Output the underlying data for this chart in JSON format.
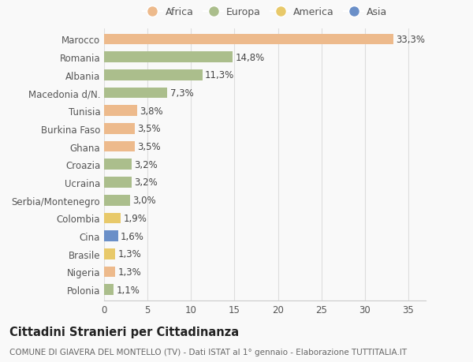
{
  "categories": [
    "Marocco",
    "Romania",
    "Albania",
    "Macedonia d/N.",
    "Tunisia",
    "Burkina Faso",
    "Ghana",
    "Croazia",
    "Ucraina",
    "Serbia/Montenegro",
    "Colombia",
    "Cina",
    "Brasile",
    "Nigeria",
    "Polonia"
  ],
  "values": [
    33.3,
    14.8,
    11.3,
    7.3,
    3.8,
    3.5,
    3.5,
    3.2,
    3.2,
    3.0,
    1.9,
    1.6,
    1.3,
    1.3,
    1.1
  ],
  "labels": [
    "33,3%",
    "14,8%",
    "11,3%",
    "7,3%",
    "3,8%",
    "3,5%",
    "3,5%",
    "3,2%",
    "3,2%",
    "3,0%",
    "1,9%",
    "1,6%",
    "1,3%",
    "1,3%",
    "1,1%"
  ],
  "colors": [
    "#EDBA8C",
    "#ABBE8C",
    "#ABBE8C",
    "#ABBE8C",
    "#EDBA8C",
    "#EDBA8C",
    "#EDBA8C",
    "#ABBE8C",
    "#ABBE8C",
    "#ABBE8C",
    "#E8C96A",
    "#6A8FC8",
    "#E8C96A",
    "#EDBA8C",
    "#ABBE8C"
  ],
  "legend_labels": [
    "Africa",
    "Europa",
    "America",
    "Asia"
  ],
  "legend_colors": [
    "#EDBA8C",
    "#ABBE8C",
    "#E8C96A",
    "#6A8FC8"
  ],
  "title": "Cittadini Stranieri per Cittadinanza",
  "subtitle": "COMUNE DI GIAVERA DEL MONTELLO (TV) - Dati ISTAT al 1° gennaio - Elaborazione TUTTITALIA.IT",
  "xlim": [
    0,
    37
  ],
  "xticks": [
    0,
    5,
    10,
    15,
    20,
    25,
    30,
    35
  ],
  "background_color": "#f9f9f9",
  "bar_height": 0.6,
  "label_fontsize": 8.5,
  "title_fontsize": 10.5,
  "subtitle_fontsize": 7.5,
  "tick_fontsize": 8.5,
  "legend_fontsize": 9
}
